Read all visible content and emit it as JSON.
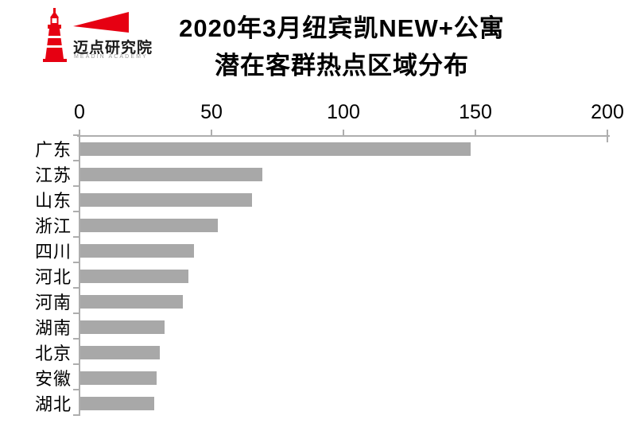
{
  "header": {
    "logo": {
      "brand": "迈点研究院",
      "subtitle": "MEADIN ACADEMY",
      "brand_color": "#e60012"
    },
    "title_line1": "2020年3月纽宾凯NEW+公寓",
    "title_line2": "潜在客群热点区域分布"
  },
  "chart_data": {
    "type": "bar",
    "orientation": "horizontal",
    "title": "2020年3月纽宾凯NEW+公寓 潜在客群热点区域分布",
    "categories": [
      "广东",
      "江苏",
      "山东",
      "浙江",
      "四川",
      "河北",
      "河南",
      "湖南",
      "北京",
      "安徽",
      "湖北"
    ],
    "values": [
      148,
      69,
      65,
      52,
      43,
      41,
      39,
      32,
      30,
      29,
      28
    ],
    "xlim": [
      0,
      200
    ],
    "xticks": [
      0,
      50,
      100,
      150,
      200
    ],
    "xlabel": "",
    "ylabel": "",
    "grid": false,
    "legend": null,
    "bar_color": "#a8a8a8",
    "axis_color": "#aeaeae",
    "text_color": "#000000"
  }
}
